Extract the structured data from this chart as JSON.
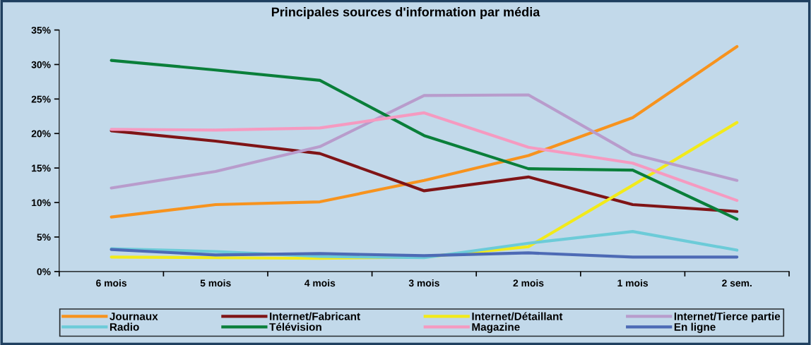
{
  "chart_data": {
    "type": "line",
    "title": "Principales sources d'information par média",
    "categories": [
      "6 mois",
      "5 mois",
      "4 mois",
      "3 mois",
      "2 mois",
      "1 mois",
      "2 sem."
    ],
    "ylim": [
      0,
      35
    ],
    "yticks": [
      {
        "value": 0,
        "label": "0%"
      },
      {
        "value": 5,
        "label": "5%"
      },
      {
        "value": 10,
        "label": "10%"
      },
      {
        "value": 15,
        "label": "15%"
      },
      {
        "value": 20,
        "label": "20%"
      },
      {
        "value": 25,
        "label": "25%"
      },
      {
        "value": 30,
        "label": "30%"
      },
      {
        "value": 35,
        "label": "35%"
      }
    ],
    "legend": "bottom",
    "line_style": "solid",
    "series": [
      {
        "name": "Journaux",
        "color": "#f7931e",
        "values": [
          7.9,
          9.7,
          10.1,
          13.2,
          16.8,
          22.3,
          32.6
        ]
      },
      {
        "name": "Internet/Fabricant",
        "color": "#7f1416",
        "values": [
          20.4,
          18.9,
          17.1,
          11.7,
          13.7,
          9.7,
          8.7
        ]
      },
      {
        "name": "Internet/Détaillant",
        "color": "#f2ea1a",
        "values": [
          2.1,
          2.0,
          1.9,
          2.1,
          3.6,
          12.5,
          21.6
        ]
      },
      {
        "name": "Internet/Tierce partie",
        "color": "#b89ccc",
        "values": [
          12.1,
          14.5,
          18.1,
          25.5,
          25.6,
          17.0,
          13.2
        ]
      },
      {
        "name": "Radio",
        "color": "#6ccbd8",
        "values": [
          3.3,
          2.9,
          2.2,
          2.0,
          4.1,
          5.8,
          3.1
        ]
      },
      {
        "name": "Télévision",
        "color": "#0a7f3a",
        "values": [
          30.6,
          29.2,
          27.7,
          19.7,
          14.9,
          14.7,
          7.6
        ]
      },
      {
        "name": "Magazine",
        "color": "#f59ac0",
        "values": [
          20.6,
          20.5,
          20.8,
          23.0,
          18.0,
          15.7,
          10.3
        ]
      },
      {
        "name": "En ligne",
        "color": "#4d6ab5",
        "values": [
          3.2,
          2.4,
          2.6,
          2.3,
          2.7,
          2.1,
          2.1
        ]
      }
    ]
  }
}
